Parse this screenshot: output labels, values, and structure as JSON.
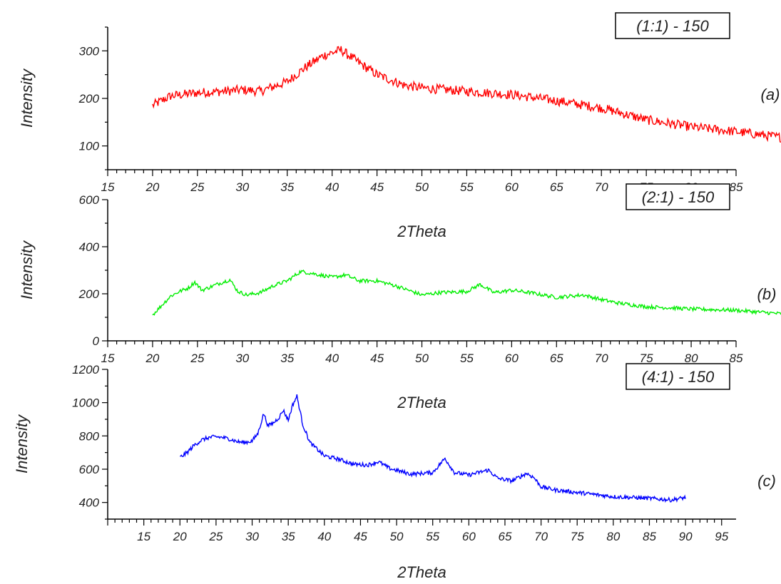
{
  "chart_data": [
    {
      "type": "line",
      "panel_label": "(a)",
      "legend": "(1:1) - 150",
      "xlabel": "2Theta",
      "ylabel": "Intensity",
      "xlim": [
        15,
        85
      ],
      "ylim": [
        50,
        350
      ],
      "xticks": [
        15,
        20,
        25,
        30,
        35,
        40,
        45,
        50,
        55,
        60,
        65,
        70,
        75,
        80,
        85
      ],
      "xtick_labels": [
        "15",
        "20",
        "25",
        "30",
        "35",
        "40",
        "45",
        "50",
        "55",
        "60",
        "65",
        "70",
        "75",
        "80",
        "85"
      ],
      "yticks": [
        100,
        200,
        300
      ],
      "ytick_labels": [
        "100",
        "200",
        "300"
      ],
      "color": "#ff0000",
      "noise": 10,
      "series": [
        {
          "x": [
            20,
            22,
            25,
            28,
            30,
            32,
            35,
            37,
            39,
            41,
            43,
            45,
            48,
            50,
            55,
            60,
            65,
            70,
            75,
            80,
            85,
            90
          ],
          "y": [
            185,
            205,
            212,
            215,
            218,
            215,
            235,
            265,
            290,
            302,
            275,
            250,
            228,
            222,
            215,
            208,
            195,
            180,
            155,
            140,
            130,
            118
          ]
        }
      ]
    },
    {
      "type": "line",
      "panel_label": "(b)",
      "legend": "(2:1) - 150",
      "xlabel": "2Theta",
      "ylabel": "Intensity",
      "xlim": [
        15,
        85
      ],
      "ylim": [
        0,
        600
      ],
      "xticks": [
        15,
        20,
        25,
        30,
        35,
        40,
        45,
        50,
        55,
        60,
        65,
        70,
        75,
        80,
        85
      ],
      "xtick_labels": [
        "15",
        "20",
        "25",
        "30",
        "35",
        "40",
        "45",
        "50",
        "55",
        "60",
        "65",
        "70",
        "75",
        "80",
        "85"
      ],
      "yticks": [
        0,
        200,
        400,
        600
      ],
      "ytick_labels": [
        "0",
        "200",
        "400",
        "600"
      ],
      "color": "#00ee00",
      "noise": 8,
      "series": [
        {
          "x": [
            20,
            21,
            22,
            23,
            24,
            24.7,
            25.5,
            26.5,
            27.5,
            28.6,
            29.5,
            30.5,
            32,
            33.5,
            35,
            36.5,
            38,
            40,
            41.5,
            43,
            45,
            47,
            50,
            52,
            55,
            56.5,
            58,
            60,
            62,
            65,
            68,
            70,
            72,
            75,
            78,
            80,
            85,
            90
          ],
          "y": [
            110,
            150,
            190,
            210,
            225,
            250,
            215,
            230,
            245,
            260,
            210,
            195,
            205,
            235,
            255,
            295,
            285,
            270,
            280,
            255,
            255,
            235,
            195,
            205,
            210,
            240,
            205,
            215,
            205,
            185,
            195,
            175,
            160,
            145,
            140,
            135,
            130,
            115
          ]
        }
      ]
    },
    {
      "type": "line",
      "panel_label": "(c)",
      "legend": "(4:1) - 150",
      "xlabel": "2Theta",
      "ylabel": "Intensity",
      "xlim": [
        10,
        97
      ],
      "ylim": [
        300,
        1200
      ],
      "xticks": [
        15,
        20,
        25,
        30,
        35,
        40,
        45,
        50,
        55,
        60,
        65,
        70,
        75,
        80,
        85,
        90,
        95
      ],
      "xtick_labels": [
        "15",
        "20",
        "25",
        "30",
        "35",
        "40",
        "45",
        "50",
        "55",
        "60",
        "65",
        "70",
        "75",
        "80",
        "85",
        "90",
        "95"
      ],
      "yticks": [
        400,
        600,
        800,
        1000,
        1200
      ],
      "ytick_labels": [
        "400",
        "600",
        "800",
        "1000",
        "1200"
      ],
      "color": "#0000ff",
      "noise": 12,
      "series": [
        {
          "x": [
            20,
            21,
            22,
            23,
            24,
            25,
            26,
            27,
            28,
            29,
            30,
            30.8,
            31.6,
            32.2,
            33,
            33.8,
            34.3,
            35,
            35.6,
            36.2,
            37,
            38,
            40,
            42,
            44,
            46,
            47.5,
            49,
            52,
            55,
            56.7,
            58,
            60,
            62.7,
            64,
            66,
            68,
            69,
            70,
            72,
            75,
            80,
            85,
            88,
            90
          ],
          "y": [
            670,
            700,
            745,
            775,
            790,
            795,
            790,
            780,
            765,
            760,
            770,
            815,
            935,
            860,
            880,
            915,
            955,
            895,
            985,
            1040,
            870,
            760,
            680,
            660,
            630,
            625,
            645,
            605,
            570,
            580,
            665,
            580,
            565,
            595,
            545,
            530,
            575,
            550,
            495,
            475,
            460,
            435,
            425,
            415,
            430
          ]
        }
      ]
    }
  ]
}
